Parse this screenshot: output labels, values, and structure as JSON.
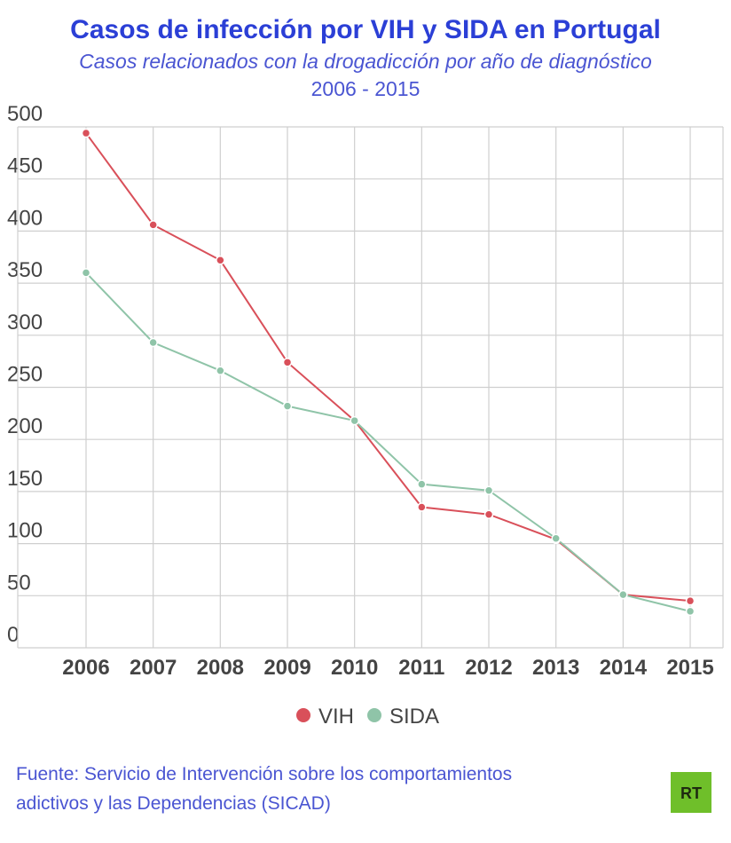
{
  "chart_data": {
    "type": "line",
    "title": "Casos de infección por VIH y SIDA en Portugal",
    "subtitle": "Casos relacionados con la drogadicción por año de diagnóstico",
    "period": "2006 - 2015",
    "categories": [
      "2006",
      "2007",
      "2008",
      "2009",
      "2010",
      "2011",
      "2012",
      "2013",
      "2014",
      "2015"
    ],
    "series": [
      {
        "name": "VIH",
        "color": "#d9505a",
        "values": [
          494,
          406,
          372,
          274,
          218,
          135,
          128,
          104,
          51,
          45
        ]
      },
      {
        "name": "SIDA",
        "color": "#8fc4a8",
        "values": [
          360,
          293,
          266,
          232,
          218,
          157,
          151,
          105,
          51,
          35
        ]
      }
    ],
    "ylim": [
      0,
      500
    ],
    "yticks": [
      0,
      50,
      100,
      150,
      200,
      250,
      300,
      350,
      400,
      450,
      500
    ],
    "grid": true,
    "source": "Fuente: Servicio de Intervención sobre los comportamientos adictivos y las Dependencias (SICAD)",
    "logo": "RT"
  }
}
